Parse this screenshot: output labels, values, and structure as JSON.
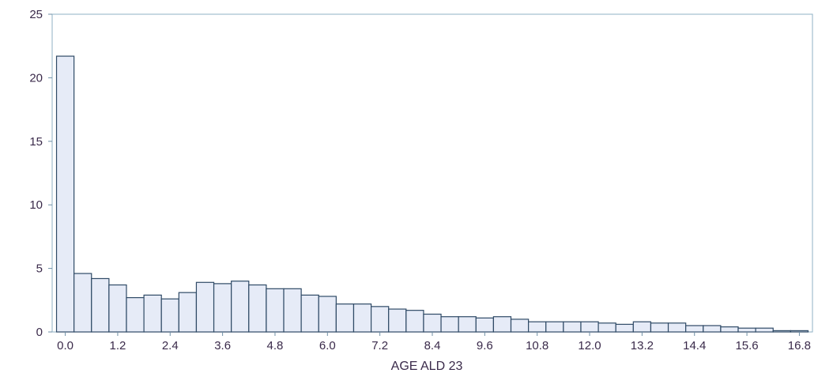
{
  "chart_data": {
    "type": "bar",
    "title": "",
    "xlabel": "AGE ALD 23",
    "ylabel": "",
    "ylim": [
      0,
      25
    ],
    "yticks": [
      0,
      5,
      10,
      15,
      20,
      25
    ],
    "xlim": [
      -0.3,
      17.1
    ],
    "xticks": [
      "0.0",
      "1.2",
      "2.4",
      "3.6",
      "4.8",
      "6.0",
      "7.2",
      "8.4",
      "9.6",
      "10.8",
      "12.0",
      "13.2",
      "14.4",
      "15.6",
      "16.8"
    ],
    "bin_width": 0.4,
    "x": [
      0.0,
      0.4,
      0.8,
      1.2,
      1.6,
      2.0,
      2.4,
      2.8,
      3.2,
      3.6,
      4.0,
      4.4,
      4.8,
      5.2,
      5.6,
      6.0,
      6.4,
      6.8,
      7.2,
      7.6,
      8.0,
      8.4,
      8.8,
      9.2,
      9.6,
      10.0,
      10.4,
      10.8,
      11.2,
      11.6,
      12.0,
      12.4,
      12.8,
      13.2,
      13.6,
      14.0,
      14.4,
      14.8,
      15.2,
      15.6,
      16.0,
      16.4,
      16.8
    ],
    "values": [
      21.7,
      4.6,
      4.2,
      3.7,
      2.7,
      2.9,
      2.6,
      3.1,
      3.9,
      3.8,
      4.0,
      3.7,
      3.4,
      3.4,
      2.9,
      2.8,
      2.2,
      2.2,
      2.0,
      1.8,
      1.7,
      1.4,
      1.2,
      1.2,
      1.1,
      1.2,
      1.0,
      0.8,
      0.8,
      0.8,
      0.8,
      0.7,
      0.6,
      0.8,
      0.7,
      0.7,
      0.5,
      0.5,
      0.4,
      0.3,
      0.3,
      0.1,
      0.1
    ],
    "grid": false,
    "colors": {
      "bar_fill": "#e6ebf7",
      "bar_stroke": "#2f4a66",
      "frame": "#8fb0c4",
      "text": "#3a2a4a"
    }
  }
}
